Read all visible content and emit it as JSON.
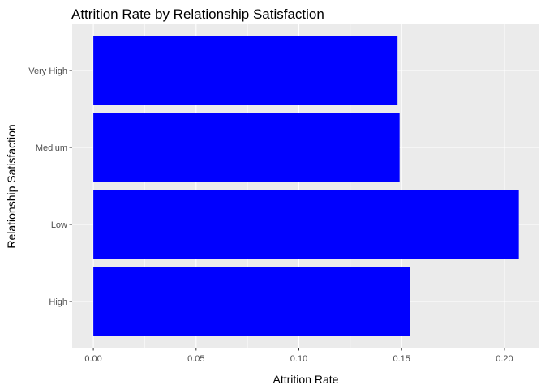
{
  "chart_data": {
    "type": "bar",
    "orientation": "horizontal",
    "title": "Attrition Rate by Relationship Satisfaction",
    "xlabel": "Attrition Rate",
    "ylabel": "Relationship Satisfaction",
    "categories": [
      "High",
      "Low",
      "Medium",
      "Very High"
    ],
    "values": [
      0.154,
      0.207,
      0.149,
      0.148
    ],
    "xlim": [
      -0.0103,
      0.217
    ],
    "xticks": [
      0.0,
      0.05,
      0.1,
      0.15,
      0.2
    ],
    "xtick_labels": [
      "0.00",
      "0.05",
      "0.10",
      "0.15",
      "0.20"
    ],
    "grid": true,
    "legend": "none",
    "colors": {
      "bar": "#0000FF",
      "panel": "#EBEBEB",
      "grid_major": "#FFFFFF",
      "tick_text": "#4D4D4D",
      "tick_mark": "#333333"
    }
  }
}
